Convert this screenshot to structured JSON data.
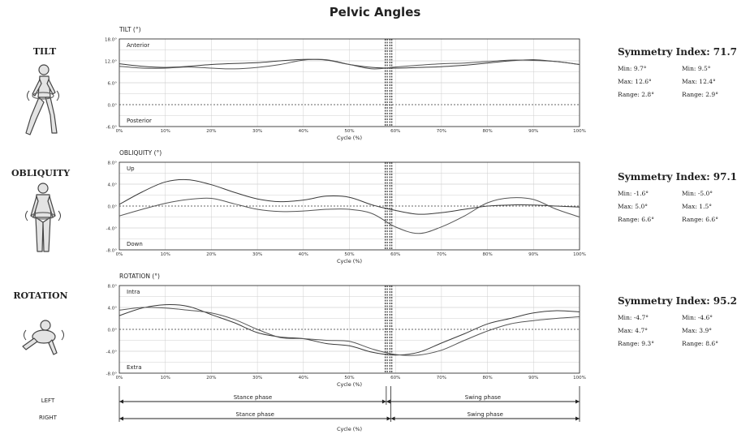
{
  "title": "Pelvic Angles",
  "colors": {
    "left_curve": "#3a3a3a",
    "right_curve": "#555555",
    "grid": "#cfcfcf",
    "axis": "#222222"
  },
  "charts": [
    {
      "row_label": "TILT",
      "chart_title": "TILT (°)",
      "top_annotation": "Anterior",
      "bottom_annotation": "Posterior",
      "symmetry_index": "Symmetry Index: 71.7",
      "stats": {
        "left": {
          "min": "Min: 9.7°",
          "max": "Max: 12.6°",
          "range": "Range: 2.8°"
        },
        "right": {
          "min": "Min: 9.5°",
          "max": "Max: 12.4°",
          "range": "Range: 2.9°"
        }
      }
    },
    {
      "row_label": "OBLIQUITY",
      "chart_title": "OBLIQUITY (°)",
      "top_annotation": "Up",
      "bottom_annotation": "Down",
      "symmetry_index": "Symmetry Index: 97.1",
      "stats": {
        "left": {
          "min": "Min: -1.6°",
          "max": "Max: 5.0°",
          "range": "Range: 6.6°"
        },
        "right": {
          "min": "Min: -5.0°",
          "max": "Max: 1.5°",
          "range": "Range: 6.6°"
        }
      }
    },
    {
      "row_label": "ROTATION",
      "chart_title": "ROTATION (°)",
      "top_annotation": "Intra",
      "bottom_annotation": "Extra",
      "symmetry_index": "Symmetry Index: 95.2",
      "stats": {
        "left": {
          "min": "Min: -4.7°",
          "max": "Max: 4.7°",
          "range": "Range: 9.3°"
        },
        "right": {
          "min": "Min: -4.6°",
          "max": "Max: 3.9°",
          "range": "Range: 8.6°"
        }
      }
    }
  ],
  "phase": {
    "left_label": "LEFT",
    "right_label": "RIGHT",
    "left_stance": "Stance phase",
    "left_swing": "Swing phase",
    "right_stance": "Stance phase",
    "right_swing": "Swing phase",
    "left_toe_off": 58,
    "right_toe_off": 59,
    "xlabel": "Cycle (%)"
  },
  "chart_data": [
    {
      "type": "line",
      "title": "TILT (°)",
      "xlabel": "Cycle (%)",
      "ylabel": "",
      "xlim": [
        0,
        100
      ],
      "ylim": [
        -6,
        18
      ],
      "yticks": [
        -6,
        0,
        6,
        12,
        18
      ],
      "ytick_labels": [
        "-6.0°",
        "0.0°",
        "6.0°",
        "12.0°",
        "18.0°"
      ],
      "xtick_labels": [
        "0%",
        "10%",
        "20%",
        "30%",
        "40%",
        "50%",
        "60%",
        "70%",
        "80%",
        "90%",
        "100%"
      ],
      "toe_off_markers": [
        58,
        59
      ],
      "x": [
        0,
        5,
        10,
        15,
        20,
        25,
        30,
        35,
        40,
        45,
        50,
        55,
        60,
        65,
        70,
        75,
        80,
        85,
        90,
        95,
        100
      ],
      "series": [
        {
          "values": [
            11.2,
            10.5,
            10.2,
            10.5,
            11.0,
            11.3,
            11.5,
            12.0,
            12.4,
            12.2,
            11.0,
            10.2,
            10.0,
            10.2,
            10.4,
            10.8,
            11.4,
            12.0,
            12.3,
            11.8,
            11.0
          ]
        },
        {
          "values": [
            10.5,
            10.0,
            10.0,
            10.3,
            10.0,
            9.8,
            10.2,
            11.0,
            12.2,
            12.3,
            11.0,
            9.8,
            10.3,
            10.8,
            11.2,
            11.4,
            11.8,
            12.2,
            12.1,
            11.8,
            11.0
          ]
        }
      ],
      "grid": true
    },
    {
      "type": "line",
      "title": "OBLIQUITY (°)",
      "xlabel": "Cycle (%)",
      "ylabel": "",
      "xlim": [
        0,
        100
      ],
      "ylim": [
        -8,
        8
      ],
      "yticks": [
        -8,
        -4,
        0,
        4,
        8
      ],
      "ytick_labels": [
        "-8.0°",
        "-4.0°",
        "0.0°",
        "4.0°",
        "8.0°"
      ],
      "xtick_labels": [
        "0%",
        "10%",
        "20%",
        "30%",
        "40%",
        "50%",
        "60%",
        "70%",
        "80%",
        "90%",
        "100%"
      ],
      "toe_off_markers": [
        58,
        59
      ],
      "x": [
        0,
        5,
        10,
        15,
        20,
        25,
        30,
        35,
        40,
        45,
        50,
        55,
        60,
        65,
        70,
        75,
        80,
        85,
        90,
        95,
        100
      ],
      "series": [
        {
          "values": [
            0.3,
            2.6,
            4.4,
            4.8,
            3.9,
            2.5,
            1.3,
            0.8,
            1.1,
            1.8,
            1.6,
            0.2,
            -0.8,
            -1.5,
            -1.2,
            -0.6,
            0.0,
            0.2,
            0.2,
            0.0,
            -0.2
          ]
        },
        {
          "values": [
            -1.8,
            -0.6,
            0.5,
            1.2,
            1.4,
            0.4,
            -0.6,
            -1.0,
            -0.9,
            -0.6,
            -0.6,
            -1.4,
            -3.8,
            -5.0,
            -3.8,
            -1.8,
            0.6,
            1.5,
            1.2,
            -0.6,
            -2.0
          ]
        }
      ],
      "grid": true
    },
    {
      "type": "line",
      "title": "ROTATION (°)",
      "xlabel": "Cycle (%)",
      "ylabel": "",
      "xlim": [
        0,
        100
      ],
      "ylim": [
        -8,
        8
      ],
      "yticks": [
        -8,
        -4,
        0,
        4,
        8
      ],
      "ytick_labels": [
        "-8.0°",
        "-4.0°",
        "0.0°",
        "4.0°",
        "8.0°"
      ],
      "xtick_labels": [
        "0%",
        "10%",
        "20%",
        "30%",
        "40%",
        "50%",
        "60%",
        "70%",
        "80%",
        "90%",
        "100%"
      ],
      "toe_off_markers": [
        58,
        59
      ],
      "x": [
        0,
        5,
        10,
        15,
        20,
        25,
        30,
        35,
        40,
        45,
        50,
        55,
        60,
        65,
        70,
        75,
        80,
        85,
        90,
        95,
        100
      ],
      "series": [
        {
          "values": [
            2.5,
            3.9,
            4.5,
            4.2,
            2.7,
            1.2,
            -0.6,
            -1.4,
            -1.7,
            -2.6,
            -3.0,
            -4.2,
            -4.7,
            -4.2,
            -2.5,
            -0.8,
            1.0,
            2.0,
            3.0,
            3.4,
            3.2
          ]
        },
        {
          "values": [
            3.5,
            4.0,
            3.9,
            3.5,
            3.0,
            1.8,
            0.0,
            -1.5,
            -1.7,
            -2.0,
            -2.2,
            -3.6,
            -4.6,
            -4.7,
            -3.8,
            -2.0,
            -0.3,
            1.0,
            1.6,
            2.0,
            2.3
          ]
        }
      ],
      "grid": true
    }
  ]
}
